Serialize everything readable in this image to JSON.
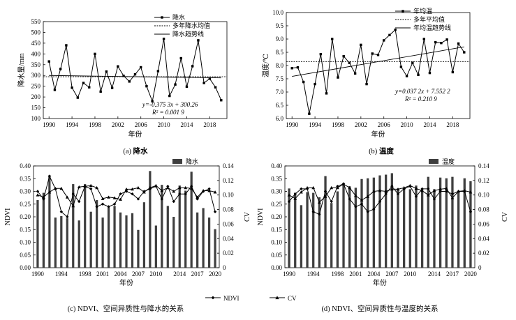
{
  "chart_data": [
    {
      "id": "a",
      "type": "line",
      "caption_prefix": "(a) ",
      "caption_name": "降水",
      "xlabel": "年份",
      "ylabel": "降水量/mm",
      "xticks": [
        1990,
        1994,
        1998,
        2002,
        2006,
        2010,
        2014,
        2018
      ],
      "xlim": [
        1989,
        2021
      ],
      "ylim": [
        100,
        550
      ],
      "yticks": [
        100,
        150,
        200,
        250,
        300,
        350,
        400,
        450,
        500,
        550
      ],
      "legend": [
        "降水",
        "多年降水均值",
        "降水趋势线"
      ],
      "years": [
        1990,
        1991,
        1992,
        1993,
        1994,
        1995,
        1996,
        1997,
        1998,
        1999,
        2000,
        2001,
        2002,
        2003,
        2004,
        2005,
        2006,
        2007,
        2008,
        2009,
        2010,
        2011,
        2012,
        2013,
        2014,
        2015,
        2016,
        2017,
        2018,
        2019,
        2020
      ],
      "values": [
        365,
        233,
        330,
        440,
        243,
        197,
        265,
        245,
        400,
        225,
        318,
        242,
        342,
        298,
        272,
        305,
        338,
        250,
        180,
        320,
        470,
        205,
        258,
        380,
        248,
        343,
        463,
        265,
        285,
        245,
        185
      ],
      "mean": 294,
      "trend": {
        "slope": -0.3753,
        "intercept": 300.26,
        "label": "y=-0.375 3x + 300.26",
        "r2_label": "R² = 0.001 9"
      }
    },
    {
      "id": "b",
      "type": "line",
      "caption_prefix": "(b) ",
      "caption_name": "温度",
      "xlabel": "年份",
      "ylabel": "温度/℃",
      "xticks": [
        1990,
        1994,
        1998,
        2002,
        2006,
        2010,
        2014,
        2018
      ],
      "xlim": [
        1989,
        2021
      ],
      "ylim": [
        6.0,
        10.0
      ],
      "yticks": [
        "6.0",
        "6.5",
        "7.0",
        "7.5",
        "8.0",
        "8.5",
        "9.0",
        "9.5",
        "10.0"
      ],
      "legend": [
        "年均温",
        "多年平均值",
        "年均温趋势线"
      ],
      "years": [
        1990,
        1991,
        1992,
        1993,
        1994,
        1995,
        1996,
        1997,
        1998,
        1999,
        2000,
        2001,
        2002,
        2003,
        2004,
        2005,
        2006,
        2007,
        2008,
        2009,
        2010,
        2011,
        2012,
        2013,
        2014,
        2015,
        2016,
        2017,
        2018,
        2019,
        2020
      ],
      "values": [
        7.9,
        7.93,
        7.38,
        6.18,
        7.3,
        8.43,
        6.95,
        9.0,
        7.55,
        8.35,
        8.1,
        7.7,
        8.78,
        7.3,
        8.45,
        8.4,
        8.95,
        9.15,
        9.35,
        7.95,
        7.6,
        8.1,
        7.65,
        9.0,
        7.72,
        8.88,
        8.85,
        8.98,
        7.75,
        8.83,
        8.5
      ],
      "mean": 8.15,
      "trend": {
        "slope": 0.0372,
        "intercept": 7.5522,
        "label": "y=0.037 2x + 7.552 2",
        "r2_label": "R² = 0.210 9"
      }
    },
    {
      "id": "c",
      "type": "bar",
      "caption": "(c) NDVI、空间异质性与降水的关系",
      "xlabel": "年份",
      "ylabel_left": "NDVI",
      "ylabel_right": "CV",
      "xticks": [
        1990,
        1994,
        1998,
        2001,
        2004,
        2007,
        2010,
        2014,
        2017,
        2020
      ],
      "xlim": [
        1989.3,
        2020.7
      ],
      "ylim_left": [
        0,
        0.4
      ],
      "yticks_left": [
        "0.00",
        "0.05",
        "0.10",
        "0.15",
        "0.20",
        "0.25",
        "0.30",
        "0.35",
        "0.40"
      ],
      "ylim_right": [
        0,
        0.14
      ],
      "yticks_right": [
        "0",
        "0.02",
        "0.04",
        "0.06",
        "0.08",
        "0.10",
        "0.12",
        "0.14"
      ],
      "bar_legend": "降水",
      "years": [
        1990,
        1991,
        1992,
        1993,
        1994,
        1995,
        1996,
        1997,
        1998,
        1999,
        2000,
        2001,
        2002,
        2003,
        2004,
        2005,
        2006,
        2007,
        2008,
        2009,
        2010,
        2011,
        2012,
        2013,
        2014,
        2015,
        2016,
        2017,
        2018,
        2019,
        2020
      ],
      "bar_values": [
        0.093,
        0.103,
        0.127,
        0.069,
        0.071,
        0.068,
        0.115,
        0.065,
        0.115,
        0.077,
        0.093,
        0.069,
        0.083,
        0.085,
        0.076,
        0.072,
        0.075,
        0.052,
        0.09,
        0.133,
        0.058,
        0.114,
        0.085,
        0.07,
        0.113,
        0.106,
        0.132,
        0.076,
        0.082,
        0.069,
        0.053
      ],
      "ndvi": [
        0.3,
        0.27,
        0.36,
        0.31,
        0.22,
        0.2,
        0.29,
        0.26,
        0.32,
        0.31,
        0.24,
        0.25,
        0.24,
        0.25,
        0.29,
        0.3,
        0.29,
        0.27,
        0.3,
        0.31,
        0.32,
        0.27,
        0.32,
        0.26,
        0.29,
        0.29,
        0.32,
        0.27,
        0.3,
        0.31,
        0.22
      ],
      "cv": [
        0.1,
        0.097,
        0.104,
        0.109,
        0.109,
        0.097,
        0.085,
        0.111,
        0.112,
        0.113,
        0.11,
        0.095,
        0.097,
        0.096,
        0.094,
        0.108,
        0.108,
        0.11,
        0.104,
        0.11,
        0.113,
        0.106,
        0.11,
        0.105,
        0.11,
        0.11,
        0.109,
        0.097,
        0.106,
        0.106,
        0.104
      ]
    },
    {
      "id": "d",
      "type": "bar",
      "caption": "(d) NDVI、空间异质性与温度的关系",
      "xlabel": "年份",
      "ylabel_left": "NDVI",
      "ylabel_right": "CV",
      "xticks": [
        1990,
        1994,
        1998,
        2001,
        2004,
        2007,
        2010,
        2014,
        2017,
        2020
      ],
      "xlim": [
        1989.3,
        2020.7
      ],
      "ylim_left": [
        0,
        0.4
      ],
      "yticks_left": [
        "0.00",
        "0.05",
        "0.10",
        "0.15",
        "0.20",
        "0.25",
        "0.30",
        "0.35",
        "0.40"
      ],
      "ylim_right": [
        0,
        0.14
      ],
      "yticks_right": [
        "0",
        "0.02",
        "0.04",
        "0.06",
        "0.08",
        "0.10",
        "0.12",
        "0.14"
      ],
      "bar_legend": "温度",
      "years": [
        1990,
        1991,
        1992,
        1993,
        1994,
        1995,
        1996,
        1997,
        1998,
        1999,
        2000,
        2001,
        2002,
        2003,
        2004,
        2005,
        2006,
        2007,
        2008,
        2009,
        2010,
        2011,
        2012,
        2013,
        2014,
        2015,
        2016,
        2017,
        2018,
        2019,
        2020
      ],
      "bar_values": [
        0.109,
        0.103,
        0.086,
        0.104,
        0.103,
        0.097,
        0.126,
        0.089,
        0.105,
        0.116,
        0.112,
        0.11,
        0.122,
        0.123,
        0.124,
        0.127,
        0.128,
        0.13,
        0.109,
        0.11,
        0.108,
        0.113,
        0.109,
        0.125,
        0.108,
        0.124,
        0.123,
        0.125,
        0.103,
        0.123,
        0.119
      ],
      "ndvi": [
        0.26,
        0.29,
        0.31,
        0.31,
        0.22,
        0.21,
        0.3,
        0.26,
        0.32,
        0.33,
        0.27,
        0.24,
        0.25,
        0.22,
        0.23,
        0.26,
        0.29,
        0.32,
        0.29,
        0.31,
        0.32,
        0.28,
        0.31,
        0.31,
        0.27,
        0.3,
        0.3,
        0.29,
        0.3,
        0.3,
        0.22
      ],
      "cv": [
        0.1,
        0.095,
        0.104,
        0.11,
        0.11,
        0.09,
        0.098,
        0.11,
        0.11,
        0.115,
        0.11,
        0.099,
        0.093,
        0.098,
        0.105,
        0.106,
        0.105,
        0.108,
        0.108,
        0.11,
        0.113,
        0.109,
        0.106,
        0.1,
        0.106,
        0.108,
        0.109,
        0.096,
        0.105,
        0.106,
        0.104
      ]
    }
  ],
  "shared_legend": {
    "ndvi": "NDVI",
    "cv": "CV"
  }
}
